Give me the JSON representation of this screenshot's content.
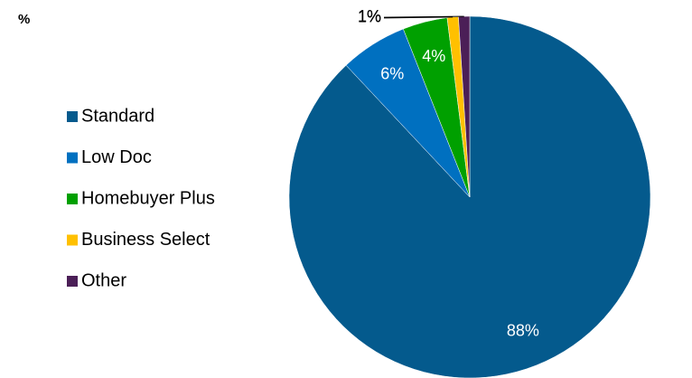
{
  "chart_data": {
    "type": "pie",
    "title": "%",
    "categories": [
      "Standard",
      "Low Doc",
      "Homebuyer Plus",
      "Business Select",
      "Other"
    ],
    "values": [
      88,
      6,
      4,
      1,
      1
    ],
    "value_labels": [
      "88%",
      "6%",
      "4%",
      "1%",
      "1%"
    ],
    "colors": [
      "#045a8d",
      "#0070c0",
      "#00a000",
      "#ffc000",
      "#4b1f57"
    ],
    "legend": "left"
  }
}
